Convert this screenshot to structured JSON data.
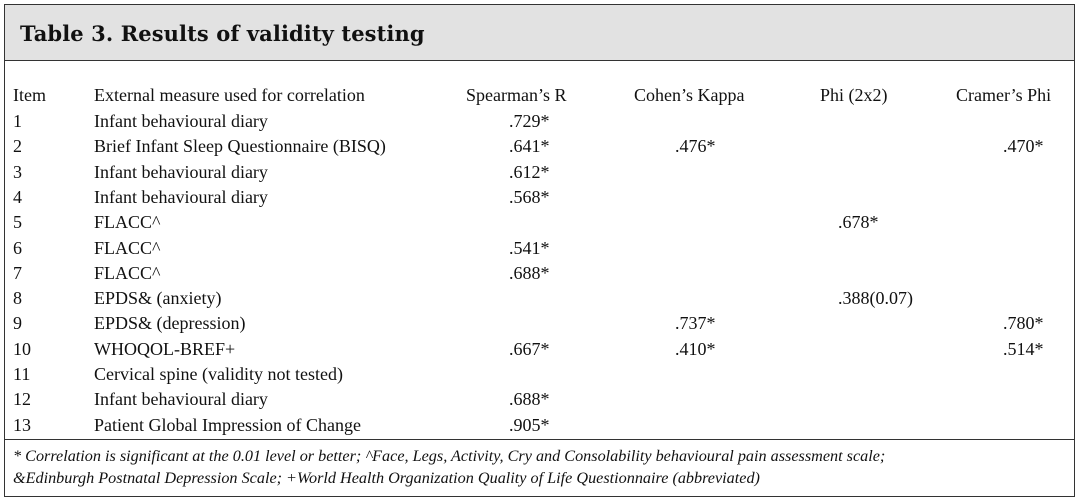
{
  "title": "Table 3. Results of validity testing",
  "headers": {
    "item": "Item",
    "measure": "External measure used for correlation",
    "spearman": "Spearman’s R",
    "kappa": "Cohen’s Kappa",
    "phi": "Phi (2x2)",
    "cramer": "Cramer’s Phi"
  },
  "rows": [
    {
      "item": "1",
      "measure": "Infant behavioural diary",
      "spearman": ".729*",
      "kappa": "",
      "phi": "",
      "cramer": ""
    },
    {
      "item": "2",
      "measure": "Brief Infant Sleep Questionnaire (BISQ)",
      "spearman": ".641*",
      "kappa": ".476*",
      "phi": "",
      "cramer": ".470*"
    },
    {
      "item": "3",
      "measure": "Infant behavioural diary",
      "spearman": ".612*",
      "kappa": "",
      "phi": "",
      "cramer": ""
    },
    {
      "item": "4",
      "measure": "Infant behavioural diary",
      "spearman": ".568*",
      "kappa": "",
      "phi": "",
      "cramer": ""
    },
    {
      "item": "5",
      "measure": "FLACC^",
      "spearman": "",
      "kappa": "",
      "phi": ".678*",
      "cramer": ""
    },
    {
      "item": "6",
      "measure": "FLACC^",
      "spearman": ".541*",
      "kappa": "",
      "phi": "",
      "cramer": ""
    },
    {
      "item": "7",
      "measure": "FLACC^",
      "spearman": ".688*",
      "kappa": "",
      "phi": "",
      "cramer": ""
    },
    {
      "item": "8",
      "measure": "EPDS& (anxiety)",
      "spearman": "",
      "kappa": "",
      "phi": ".388(0.07)",
      "cramer": ""
    },
    {
      "item": "9",
      "measure": "EPDS& (depression)",
      "spearman": "",
      "kappa": ".737*",
      "phi": "",
      "cramer": ".780*"
    },
    {
      "item": "10",
      "measure": "WHOQOL-BREF+",
      "spearman": ".667*",
      "kappa": ".410*",
      "phi": "",
      "cramer": ".514*"
    },
    {
      "item": "11",
      "measure": "Cervical spine (validity not tested)",
      "spearman": "",
      "kappa": "",
      "phi": "",
      "cramer": ""
    },
    {
      "item": "12",
      "measure": "Infant behavioural diary",
      "spearman": ".688*",
      "kappa": "",
      "phi": "",
      "cramer": ""
    },
    {
      "item": "13",
      "measure": "Patient Global Impression of Change",
      "spearman": ".905*",
      "kappa": "",
      "phi": "",
      "cramer": ""
    }
  ],
  "footnote": {
    "line1": "* Correlation is significant at the 0.01 level or better; ^Face, Legs, Activity, Cry and Consolability behavioural pain assessment scale;",
    "line2": "&Edinburgh Postnatal Depression Scale; +World Health Organization Quality of Life Questionnaire (abbreviated)"
  }
}
